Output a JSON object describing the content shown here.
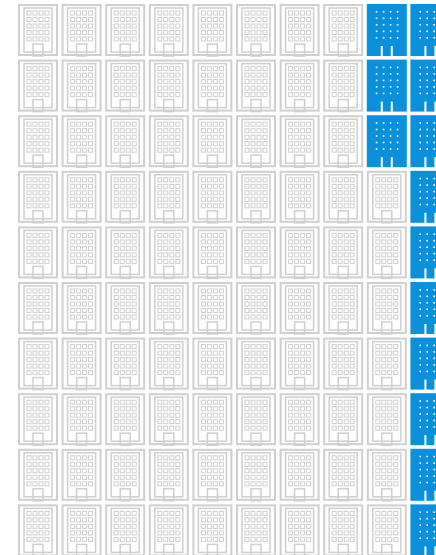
{
  "grid": {
    "columns": 10,
    "rows": [
      {
        "highlighted": 2
      },
      {
        "highlighted": 2
      },
      {
        "highlighted": 2
      },
      {
        "highlighted": 1
      },
      {
        "highlighted": 1
      },
      {
        "highlighted": 1
      },
      {
        "highlighted": 1
      },
      {
        "highlighted": 1
      },
      {
        "highlighted": 1
      },
      {
        "highlighted": 1
      }
    ],
    "base_color": "#cfcfcf",
    "highlight_color": "#0b91db"
  }
}
